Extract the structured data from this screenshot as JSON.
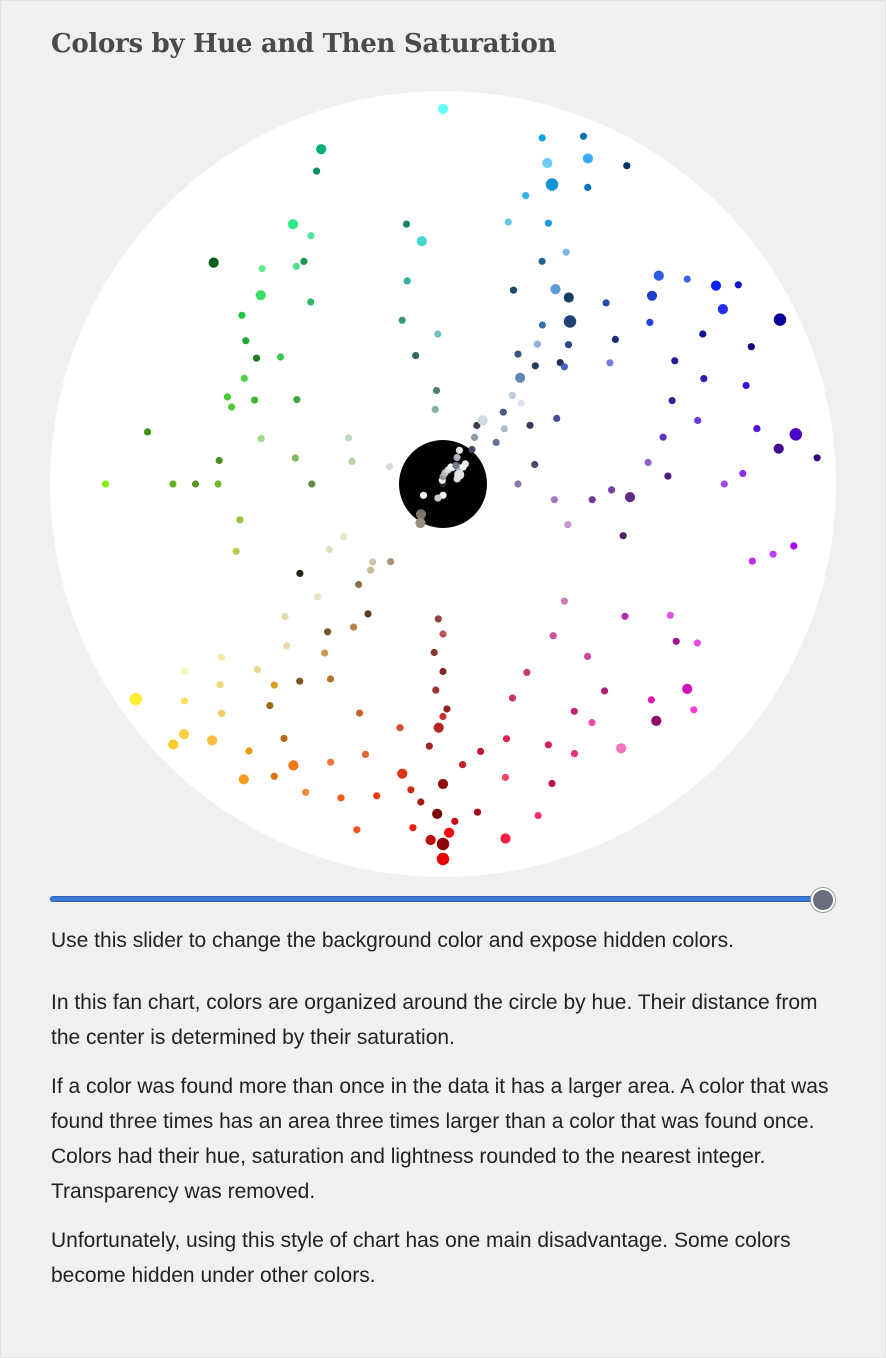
{
  "title": "Colors by Hue and Then Saturation",
  "slider": {
    "caption": "Use this slider to change the background color and expose hidden colors.",
    "value": 1.0
  },
  "paragraphs": [
    "In this fan chart, colors are organized around the circle by hue. Their distance from the center is determined by their saturation.",
    "If a color was found more than once in the data it has a larger area. A color that was found three times has an area three times larger than a color that was found once. Colors had their hue, saturation and lightness rounded to the nearest integer. Transparency was removed.",
    "Unfortunately, using this style of chart has one main disadvantage. Some colors become hidden under other colors."
  ],
  "chart_data": {
    "type": "scatter",
    "encoding": "polar: angle = hue (degrees, 0 = red at bottom, clockwise through yellow, green, cyan, blue, magenta); radius = saturation (%); area = count",
    "background_color": "#ffffff",
    "page_color": "#f0f0f0",
    "center_disc": {
      "color": "#000000",
      "label": ""
    },
    "points": [
      {
        "h": 0,
        "s": 100,
        "l": 45,
        "n": 3
      },
      {
        "h": 2,
        "s": 95,
        "l": 38,
        "n": 2
      },
      {
        "h": 358,
        "s": 90,
        "l": 40,
        "n": 1
      },
      {
        "h": 4,
        "s": 85,
        "l": 35,
        "n": 1
      },
      {
        "h": 0,
        "s": 80,
        "l": 30,
        "n": 2
      },
      {
        "h": 356,
        "s": 75,
        "l": 45,
        "n": 1
      },
      {
        "h": 3,
        "s": 70,
        "l": 38,
        "n": 1
      },
      {
        "h": 1,
        "s": 65,
        "l": 42,
        "n": 2
      },
      {
        "h": 359,
        "s": 60,
        "l": 35,
        "n": 1
      },
      {
        "h": 2,
        "s": 55,
        "l": 40,
        "n": 1
      },
      {
        "h": 0,
        "s": 50,
        "l": 33,
        "n": 1
      },
      {
        "h": 3,
        "s": 45,
        "l": 36,
        "n": 1
      },
      {
        "h": 5,
        "s": 92,
        "l": 50,
        "n": 1
      },
      {
        "h": 6,
        "s": 82,
        "l": 45,
        "n": 1
      },
      {
        "h": 354,
        "s": 88,
        "l": 34,
        "n": 1
      },
      {
        "h": 8,
        "s": 78,
        "l": 48,
        "n": 2
      },
      {
        "h": 352,
        "s": 72,
        "l": 42,
        "n": 1
      },
      {
        "h": 10,
        "s": 66,
        "l": 52,
        "n": 1
      },
      {
        "h": 350,
        "s": 96,
        "l": 55,
        "n": 2
      },
      {
        "h": 12,
        "s": 85,
        "l": 50,
        "n": 1
      },
      {
        "h": 348,
        "s": 80,
        "l": 60,
        "n": 1
      },
      {
        "h": 14,
        "s": 95,
        "l": 55,
        "n": 1
      },
      {
        "h": 346,
        "s": 70,
        "l": 50,
        "n": 1
      },
      {
        "h": 16,
        "s": 75,
        "l": 55,
        "n": 1
      },
      {
        "h": 344,
        "s": 92,
        "l": 58,
        "n": 1
      },
      {
        "h": 18,
        "s": 88,
        "l": 52,
        "n": 1
      },
      {
        "h": 342,
        "s": 60,
        "l": 50,
        "n": 1
      },
      {
        "h": 20,
        "s": 65,
        "l": 48,
        "n": 1
      },
      {
        "h": 340,
        "s": 85,
        "l": 40,
        "n": 1
      },
      {
        "h": 22,
        "s": 80,
        "l": 56,
        "n": 1
      },
      {
        "h": 338,
        "s": 75,
        "l": 48,
        "n": 1
      },
      {
        "h": 24,
        "s": 90,
        "l": 60,
        "n": 1
      },
      {
        "h": 0,
        "s": 96,
        "l": 28,
        "n": 3
      },
      {
        "h": 1,
        "s": 88,
        "l": 25,
        "n": 2
      },
      {
        "h": 359,
        "s": 93,
        "l": 50,
        "n": 2
      },
      {
        "h": 0,
        "s": 62,
        "l": 48,
        "n": 1
      },
      {
        "h": 0,
        "s": 40,
        "l": 52,
        "n": 1
      },
      {
        "h": 2,
        "s": 36,
        "l": 40,
        "n": 1
      },
      {
        "h": 28,
        "s": 85,
        "l": 50,
        "n": 2
      },
      {
        "h": 30,
        "s": 90,
        "l": 45,
        "n": 1
      },
      {
        "h": 32,
        "s": 80,
        "l": 40,
        "n": 1
      },
      {
        "h": 34,
        "s": 95,
        "l": 55,
        "n": 2
      },
      {
        "h": 36,
        "s": 88,
        "l": 50,
        "n": 1
      },
      {
        "h": 38,
        "s": 75,
        "l": 35,
        "n": 1
      },
      {
        "h": 40,
        "s": 70,
        "l": 50,
        "n": 1
      },
      {
        "h": 30,
        "s": 60,
        "l": 45,
        "n": 1
      },
      {
        "h": 35,
        "s": 55,
        "l": 55,
        "n": 1
      },
      {
        "h": 32,
        "s": 45,
        "l": 50,
        "n": 1
      },
      {
        "h": 40,
        "s": 35,
        "l": 40,
        "n": 1
      },
      {
        "h": 42,
        "s": 92,
        "l": 60,
        "n": 2
      },
      {
        "h": 44,
        "s": 85,
        "l": 65,
        "n": 1
      },
      {
        "h": 46,
        "s": 96,
        "l": 62,
        "n": 2
      },
      {
        "h": 48,
        "s": 80,
        "l": 70,
        "n": 1
      },
      {
        "h": 50,
        "s": 90,
        "l": 68,
        "n": 1
      },
      {
        "h": 45,
        "s": 70,
        "l": 75,
        "n": 1
      },
      {
        "h": 38,
        "s": 50,
        "l": 30,
        "n": 1
      },
      {
        "h": 30,
        "s": 40,
        "l": 25,
        "n": 1
      },
      {
        "h": 36,
        "s": 65,
        "l": 30,
        "n": 1
      },
      {
        "h": 34,
        "s": 25,
        "l": 55,
        "n": 1
      },
      {
        "h": 42,
        "s": 28,
        "l": 75,
        "n": 1
      },
      {
        "h": 46,
        "s": 100,
        "l": 58,
        "n": 2
      },
      {
        "h": 44,
        "s": 60,
        "l": 80,
        "n": 1
      },
      {
        "h": 40,
        "s": 30,
        "l": 70,
        "n": 1
      },
      {
        "h": 50,
        "s": 55,
        "l": 78,
        "n": 1
      },
      {
        "h": 52,
        "s": 75,
        "l": 80,
        "n": 1
      },
      {
        "h": 54,
        "s": 85,
        "l": 85,
        "n": 1
      },
      {
        "h": 48,
        "s": 45,
        "l": 85,
        "n": 1
      },
      {
        "h": 36,
        "s": 10,
        "l": 45,
        "n": 2
      },
      {
        "h": 55,
        "s": 100,
        "l": 60,
        "n": 3
      },
      {
        "h": 58,
        "s": 45,
        "l": 10,
        "n": 1
      },
      {
        "h": 60,
        "s": 35,
        "l": 80,
        "n": 1
      },
      {
        "h": 62,
        "s": 30,
        "l": 85,
        "n": 1
      },
      {
        "h": 80,
        "s": 55,
        "l": 50,
        "n": 1
      },
      {
        "h": 90,
        "s": 90,
        "l": 50,
        "n": 1
      },
      {
        "h": 90,
        "s": 72,
        "l": 40,
        "n": 1
      },
      {
        "h": 90,
        "s": 66,
        "l": 35,
        "n": 1
      },
      {
        "h": 90,
        "s": 60,
        "l": 45,
        "n": 1
      },
      {
        "h": 90,
        "s": 35,
        "l": 40,
        "n": 1
      },
      {
        "h": 100,
        "s": 80,
        "l": 32,
        "n": 1
      },
      {
        "h": 72,
        "s": 58,
        "l": 55,
        "n": 1
      },
      {
        "h": 120,
        "s": 45,
        "l": 45,
        "n": 1
      },
      {
        "h": 100,
        "s": 40,
        "l": 55,
        "n": 1
      },
      {
        "h": 96,
        "s": 60,
        "l": 35,
        "n": 1
      },
      {
        "h": 104,
        "s": 50,
        "l": 70,
        "n": 1
      },
      {
        "h": 110,
        "s": 60,
        "l": 50,
        "n": 1
      },
      {
        "h": 112,
        "s": 62,
        "l": 50,
        "n": 1
      },
      {
        "h": 114,
        "s": 55,
        "l": 45,
        "n": 1
      },
      {
        "h": 118,
        "s": 60,
        "l": 55,
        "n": 1
      },
      {
        "h": 124,
        "s": 60,
        "l": 30,
        "n": 1
      },
      {
        "h": 126,
        "s": 65,
        "l": 40,
        "n": 1
      },
      {
        "h": 130,
        "s": 70,
        "l": 45,
        "n": 1
      },
      {
        "h": 128,
        "s": 55,
        "l": 50,
        "n": 1
      },
      {
        "h": 134,
        "s": 85,
        "l": 20,
        "n": 2
      },
      {
        "h": 136,
        "s": 70,
        "l": 55,
        "n": 2
      },
      {
        "h": 140,
        "s": 75,
        "l": 65,
        "n": 1
      },
      {
        "h": 144,
        "s": 60,
        "l": 45,
        "n": 1
      },
      {
        "h": 146,
        "s": 70,
        "l": 60,
        "n": 1
      },
      {
        "h": 148,
        "s": 70,
        "l": 35,
        "n": 1
      },
      {
        "h": 150,
        "s": 80,
        "l": 55,
        "n": 2
      },
      {
        "h": 152,
        "s": 75,
        "l": 60,
        "n": 1
      },
      {
        "h": 158,
        "s": 90,
        "l": 30,
        "n": 1
      },
      {
        "h": 160,
        "s": 95,
        "l": 35,
        "n": 2
      },
      {
        "h": 104,
        "s": 25,
        "l": 75,
        "n": 1
      },
      {
        "h": 116,
        "s": 28,
        "l": 80,
        "n": 1
      },
      {
        "h": 108,
        "s": 15,
        "l": 85,
        "n": 1
      },
      {
        "h": 175,
        "s": 65,
        "l": 55,
        "n": 2
      },
      {
        "h": 170,
        "s": 55,
        "l": 45,
        "n": 1
      },
      {
        "h": 166,
        "s": 45,
        "l": 40,
        "n": 1
      },
      {
        "h": 176,
        "s": 25,
        "l": 40,
        "n": 1
      },
      {
        "h": 178,
        "s": 40,
        "l": 60,
        "n": 1
      },
      {
        "h": 172,
        "s": 70,
        "l": 30,
        "n": 1
      },
      {
        "h": 180,
        "s": 100,
        "l": 70,
        "n": 2
      },
      {
        "h": 168,
        "s": 35,
        "l": 30,
        "n": 1
      },
      {
        "h": 174,
        "s": 20,
        "l": 60,
        "n": 1
      },
      {
        "h": 194,
        "s": 72,
        "l": 65,
        "n": 1
      },
      {
        "h": 196,
        "s": 80,
        "l": 55,
        "n": 1
      },
      {
        "h": 198,
        "s": 90,
        "l": 70,
        "n": 2
      },
      {
        "h": 200,
        "s": 85,
        "l": 45,
        "n": 3
      },
      {
        "h": 202,
        "s": 75,
        "l": 50,
        "n": 1
      },
      {
        "h": 204,
        "s": 95,
        "l": 60,
        "n": 2
      },
      {
        "h": 206,
        "s": 88,
        "l": 40,
        "n": 1
      },
      {
        "h": 208,
        "s": 70,
        "l": 70,
        "n": 1
      },
      {
        "h": 210,
        "s": 60,
        "l": 60,
        "n": 2
      },
      {
        "h": 212,
        "s": 50,
        "l": 45,
        "n": 1
      },
      {
        "h": 214,
        "s": 45,
        "l": 70,
        "n": 1
      },
      {
        "h": 210,
        "s": 40,
        "l": 35,
        "n": 1
      },
      {
        "h": 216,
        "s": 35,
        "l": 55,
        "n": 2
      },
      {
        "h": 218,
        "s": 30,
        "l": 80,
        "n": 1
      },
      {
        "h": 220,
        "s": 25,
        "l": 40,
        "n": 1
      },
      {
        "h": 212,
        "s": 20,
        "l": 85,
        "n": 2
      },
      {
        "h": 214,
        "s": 15,
        "l": 60,
        "n": 1
      },
      {
        "h": 220,
        "s": 12,
        "l": 30,
        "n": 1
      },
      {
        "h": 206,
        "s": 10,
        "l": 90,
        "n": 1
      },
      {
        "h": 208,
        "s": 8,
        "l": 70,
        "n": 1
      },
      {
        "h": 210,
        "s": 18,
        "l": 25,
        "n": 1
      },
      {
        "h": 200,
        "s": 55,
        "l": 25,
        "n": 1
      },
      {
        "h": 204,
        "s": 65,
        "l": 35,
        "n": 1
      },
      {
        "h": 214,
        "s": 60,
        "l": 25,
        "n": 2
      },
      {
        "h": 218,
        "s": 55,
        "l": 30,
        "n": 3
      },
      {
        "h": 222,
        "s": 50,
        "l": 35,
        "n": 1
      },
      {
        "h": 224,
        "s": 45,
        "l": 25,
        "n": 1
      },
      {
        "h": 226,
        "s": 80,
        "l": 55,
        "n": 2
      },
      {
        "h": 228,
        "s": 75,
        "l": 45,
        "n": 2
      },
      {
        "h": 230,
        "s": 85,
        "l": 60,
        "n": 1
      },
      {
        "h": 232,
        "s": 70,
        "l": 50,
        "n": 1
      },
      {
        "h": 234,
        "s": 90,
        "l": 50,
        "n": 2
      },
      {
        "h": 236,
        "s": 95,
        "l": 40,
        "n": 1
      },
      {
        "h": 238,
        "s": 88,
        "l": 55,
        "n": 2
      },
      {
        "h": 240,
        "s": 80,
        "l": 30,
        "n": 1
      },
      {
        "h": 242,
        "s": 70,
        "l": 35,
        "n": 1
      },
      {
        "h": 244,
        "s": 100,
        "l": 30,
        "n": 3
      },
      {
        "h": 246,
        "s": 90,
        "l": 25,
        "n": 1
      },
      {
        "h": 248,
        "s": 75,
        "l": 40,
        "n": 1
      },
      {
        "h": 250,
        "s": 65,
        "l": 35,
        "n": 1
      },
      {
        "h": 252,
        "s": 85,
        "l": 45,
        "n": 1
      },
      {
        "h": 224,
        "s": 30,
        "l": 90,
        "n": 1
      },
      {
        "h": 228,
        "s": 22,
        "l": 75,
        "n": 1
      },
      {
        "h": 232,
        "s": 18,
        "l": 50,
        "n": 1
      },
      {
        "h": 236,
        "s": 28,
        "l": 30,
        "n": 1
      },
      {
        "h": 240,
        "s": 35,
        "l": 45,
        "n": 1
      },
      {
        "h": 218,
        "s": 40,
        "l": 25,
        "n": 1
      },
      {
        "h": 226,
        "s": 45,
        "l": 50,
        "n": 1
      },
      {
        "h": 230,
        "s": 60,
        "l": 30,
        "n": 1
      },
      {
        "h": 234,
        "s": 55,
        "l": 65,
        "n": 1
      },
      {
        "h": 222,
        "s": 65,
        "l": 40,
        "n": 1
      },
      {
        "h": 196,
        "s": 96,
        "l": 45,
        "n": 1
      },
      {
        "h": 202,
        "s": 100,
        "l": 35,
        "n": 1
      },
      {
        "h": 210,
        "s": 98,
        "l": 20,
        "n": 1
      },
      {
        "h": 256,
        "s": 70,
        "l": 55,
        "n": 1
      },
      {
        "h": 258,
        "s": 60,
        "l": 50,
        "n": 1
      },
      {
        "h": 260,
        "s": 85,
        "l": 45,
        "n": 1
      },
      {
        "h": 262,
        "s": 95,
        "l": 40,
        "n": 3
      },
      {
        "h": 264,
        "s": 90,
        "l": 30,
        "n": 2
      },
      {
        "h": 266,
        "s": 100,
        "l": 25,
        "n": 1
      },
      {
        "h": 268,
        "s": 80,
        "l": 55,
        "n": 1
      },
      {
        "h": 270,
        "s": 75,
        "l": 60,
        "n": 1
      },
      {
        "h": 272,
        "s": 45,
        "l": 45,
        "n": 1
      },
      {
        "h": 274,
        "s": 50,
        "l": 35,
        "n": 2
      },
      {
        "h": 276,
        "s": 40,
        "l": 40,
        "n": 1
      },
      {
        "h": 278,
        "s": 30,
        "l": 60,
        "n": 1
      },
      {
        "h": 280,
        "s": 95,
        "l": 50,
        "n": 1
      },
      {
        "h": 282,
        "s": 90,
        "l": 60,
        "n": 1
      },
      {
        "h": 284,
        "s": 85,
        "l": 55,
        "n": 1
      },
      {
        "h": 286,
        "s": 50,
        "l": 25,
        "n": 1
      },
      {
        "h": 288,
        "s": 35,
        "l": 70,
        "n": 1
      },
      {
        "h": 264,
        "s": 55,
        "l": 60,
        "n": 1
      },
      {
        "h": 268,
        "s": 60,
        "l": 30,
        "n": 1
      },
      {
        "h": 258,
        "s": 25,
        "l": 35,
        "n": 1
      },
      {
        "h": 270,
        "s": 20,
        "l": 55,
        "n": 1
      },
      {
        "h": 300,
        "s": 70,
        "l": 60,
        "n": 1
      },
      {
        "h": 302,
        "s": 80,
        "l": 60,
        "n": 1
      },
      {
        "h": 304,
        "s": 75,
        "l": 35,
        "n": 1
      },
      {
        "h": 306,
        "s": 60,
        "l": 45,
        "n": 1
      },
      {
        "h": 310,
        "s": 85,
        "l": 45,
        "n": 2
      },
      {
        "h": 312,
        "s": 90,
        "l": 60,
        "n": 1
      },
      {
        "h": 316,
        "s": 80,
        "l": 50,
        "n": 1
      },
      {
        "h": 318,
        "s": 85,
        "l": 30,
        "n": 2
      },
      {
        "h": 320,
        "s": 60,
        "l": 55,
        "n": 1
      },
      {
        "h": 322,
        "s": 70,
        "l": 40,
        "n": 1
      },
      {
        "h": 326,
        "s": 85,
        "l": 70,
        "n": 2
      },
      {
        "h": 328,
        "s": 75,
        "l": 60,
        "n": 1
      },
      {
        "h": 330,
        "s": 70,
        "l": 45,
        "n": 1
      },
      {
        "h": 334,
        "s": 80,
        "l": 55,
        "n": 1
      },
      {
        "h": 336,
        "s": 55,
        "l": 50,
        "n": 1
      },
      {
        "h": 324,
        "s": 50,
        "l": 55,
        "n": 1
      },
      {
        "h": 314,
        "s": 45,
        "l": 65,
        "n": 1
      },
      {
        "h": 240,
        "s": 5,
        "l": 90,
        "n": 2
      },
      {
        "h": 210,
        "s": 5,
        "l": 80,
        "n": 1
      },
      {
        "h": 0,
        "s": 3,
        "l": 95,
        "n": 1
      },
      {
        "h": 220,
        "s": 6,
        "l": 70,
        "n": 1
      },
      {
        "h": 200,
        "s": 4,
        "l": 85,
        "n": 1
      },
      {
        "h": 180,
        "s": 2,
        "l": 60,
        "n": 1
      },
      {
        "h": 230,
        "s": 7,
        "l": 95,
        "n": 1
      },
      {
        "h": 190,
        "s": 3,
        "l": 75,
        "n": 1
      },
      {
        "h": 250,
        "s": 4,
        "l": 88,
        "n": 1
      },
      {
        "h": 170,
        "s": 1,
        "l": 92,
        "n": 1
      },
      {
        "h": 215,
        "s": 6,
        "l": 50,
        "n": 1
      },
      {
        "h": 205,
        "s": 5,
        "l": 98,
        "n": 1
      },
      {
        "h": 0,
        "s": 0,
        "l": 15,
        "n": 1
      },
      {
        "h": 30,
        "s": 12,
        "l": 55,
        "n": 2
      },
      {
        "h": 228,
        "s": 8,
        "l": 92,
        "n": 1
      },
      {
        "h": 20,
        "s": 4,
        "l": 80,
        "n": 1
      },
      {
        "h": 60,
        "s": 6,
        "l": 96,
        "n": 1
      }
    ]
  }
}
